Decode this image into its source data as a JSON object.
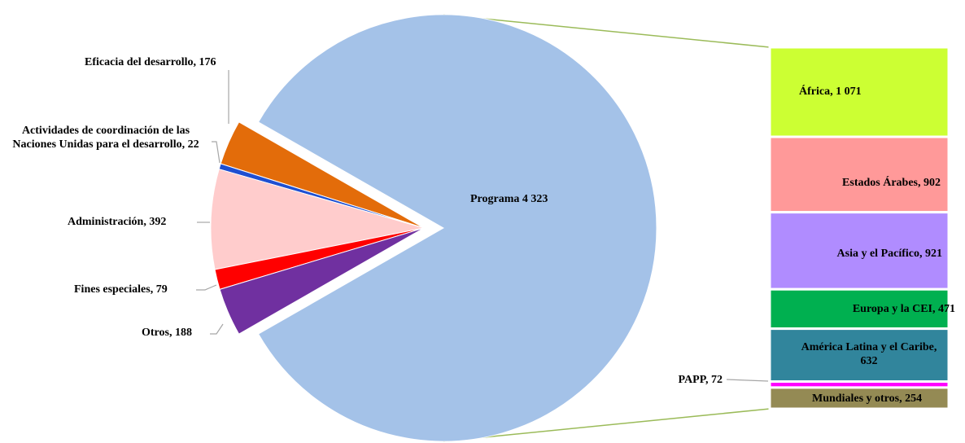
{
  "chart_data": {
    "type": "pie",
    "slices": {
      "values": [
        4323,
        176,
        22,
        392,
        79,
        188
      ],
      "value_labels": [
        "Programa 4 323",
        "Eficacia del desarrollo, 176",
        "Actividades de coordinación de las Naciones Unidas para el desarrollo, 22",
        "Administración, 392",
        "Fines especiales, 79",
        "Otros, 188"
      ],
      "colors": [
        "#a4c2e8",
        "#e36c0a",
        "#1f4fd1",
        "#ffcccc",
        "#ff0000",
        "#7030a0"
      ]
    },
    "breakdown": {
      "values": [
        1071,
        902,
        921,
        471,
        632,
        72,
        254
      ],
      "value_labels": [
        "África, 1 071",
        "Estados Árabes, 902",
        "Asia y el Pacífico, 921",
        "Europa y la CEI, 471",
        "América Latina y el Caribe, 632",
        "PAPP, 72",
        "Mundiales y otros, 254"
      ],
      "colors": [
        "#ccff33",
        "#ff9999",
        "#b08cff",
        "#00b050",
        "#31859c",
        "#ff00ff",
        "#948a54"
      ]
    },
    "connector_color": "#9bbb59"
  }
}
